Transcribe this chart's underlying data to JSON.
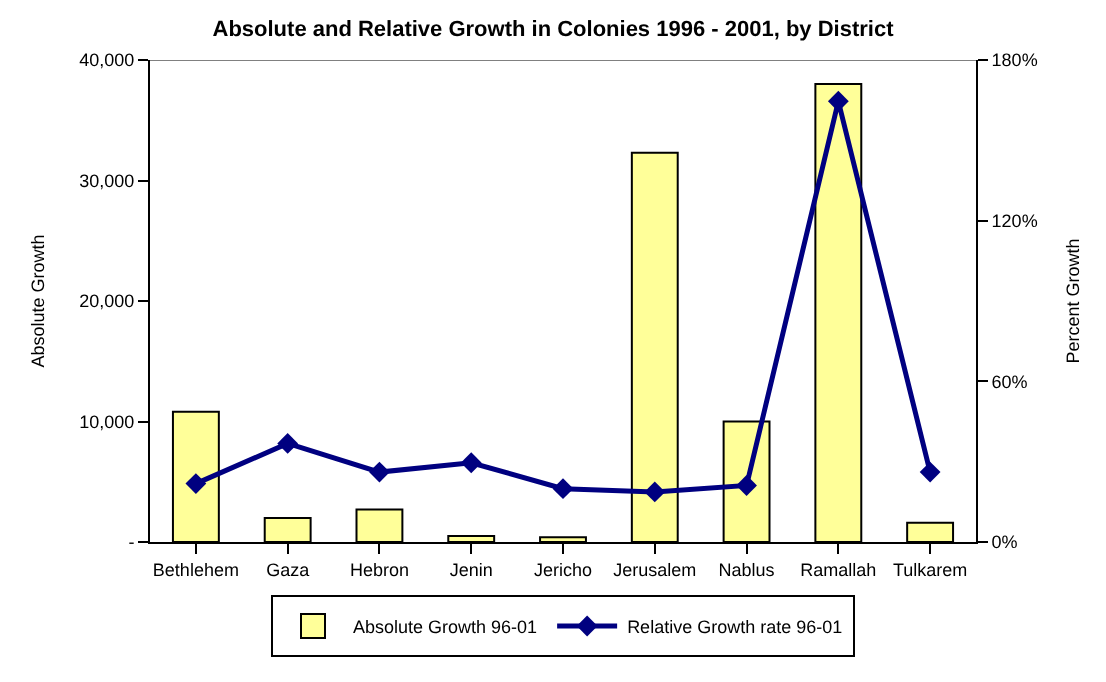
{
  "chart_data": {
    "type": "bar",
    "title": "Absolute and Relative Growth in Colonies 1996 - 2001, by District",
    "ylabel": "Absolute Growth",
    "y2label": "Percent Growth",
    "categories": [
      "Bethlehem",
      "Gaza",
      "Hebron",
      "Jenin",
      "Jericho",
      "Jerusalem",
      "Nablus",
      "Ramallah",
      "Tulkarem"
    ],
    "series": [
      {
        "name": "Absolute Growth 96-01",
        "color": "#ffff99",
        "values": [
          10800,
          2000,
          2700,
          500,
          400,
          32300,
          10000,
          38000,
          1600
        ]
      },
      {
        "name": "Relative Growth rate 96-01",
        "type": "line",
        "axis": "y2",
        "color": "#000080",
        "marker": "diamond",
        "values": [
          21.8,
          36.8,
          26.1,
          29.6,
          19.9,
          18.7,
          21.1,
          164.6,
          26.1
        ]
      }
    ],
    "ylim": [
      0,
      40000
    ],
    "yticks": [
      {
        "value": 0,
        "label": "-"
      },
      {
        "value": 10000,
        "label": "10,000"
      },
      {
        "value": 20000,
        "label": "20,000"
      },
      {
        "value": 30000,
        "label": "30,000"
      },
      {
        "value": 40000,
        "label": "40,000"
      }
    ],
    "y2lim": [
      0,
      180
    ],
    "y2ticks": [
      {
        "value": 0,
        "label": "0%"
      },
      {
        "value": 60,
        "label": "60%"
      },
      {
        "value": 120,
        "label": "120%"
      },
      {
        "value": 180,
        "label": "180%"
      }
    ],
    "legend": "bottom"
  }
}
